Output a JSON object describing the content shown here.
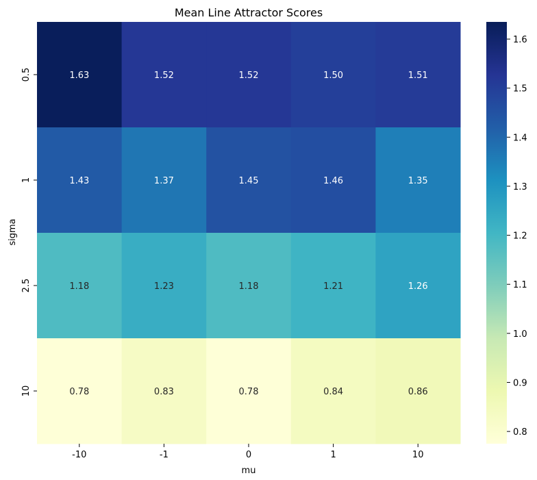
{
  "chart_data": {
    "type": "heatmap",
    "title": "Mean Line Attractor Scores",
    "xlabel": "mu",
    "ylabel": "sigma",
    "x_categories": [
      "-10",
      "-1",
      "0",
      "1",
      "10"
    ],
    "y_categories": [
      "0.5",
      "1",
      "2.5",
      "10"
    ],
    "values": [
      [
        1.63,
        1.52,
        1.52,
        1.5,
        1.51
      ],
      [
        1.43,
        1.37,
        1.45,
        1.46,
        1.35
      ],
      [
        1.18,
        1.23,
        1.18,
        1.21,
        1.26
      ],
      [
        0.78,
        0.83,
        0.78,
        0.84,
        0.86
      ]
    ],
    "value_labels": [
      [
        "1.63",
        "1.52",
        "1.52",
        "1.50",
        "1.51"
      ],
      [
        "1.43",
        "1.37",
        "1.45",
        "1.46",
        "1.35"
      ],
      [
        "1.18",
        "1.23",
        "1.18",
        "1.21",
        "1.26"
      ],
      [
        "0.78",
        "0.83",
        "0.78",
        "0.84",
        "0.86"
      ]
    ],
    "colormap": "YlGnBu",
    "vmin": 0.775,
    "vmax": 1.635,
    "colorbar_ticks": [
      "0.8",
      "0.9",
      "1.0",
      "1.1",
      "1.2",
      "1.3",
      "1.4",
      "1.5",
      "1.6"
    ],
    "annotations": true,
    "grid": false
  }
}
